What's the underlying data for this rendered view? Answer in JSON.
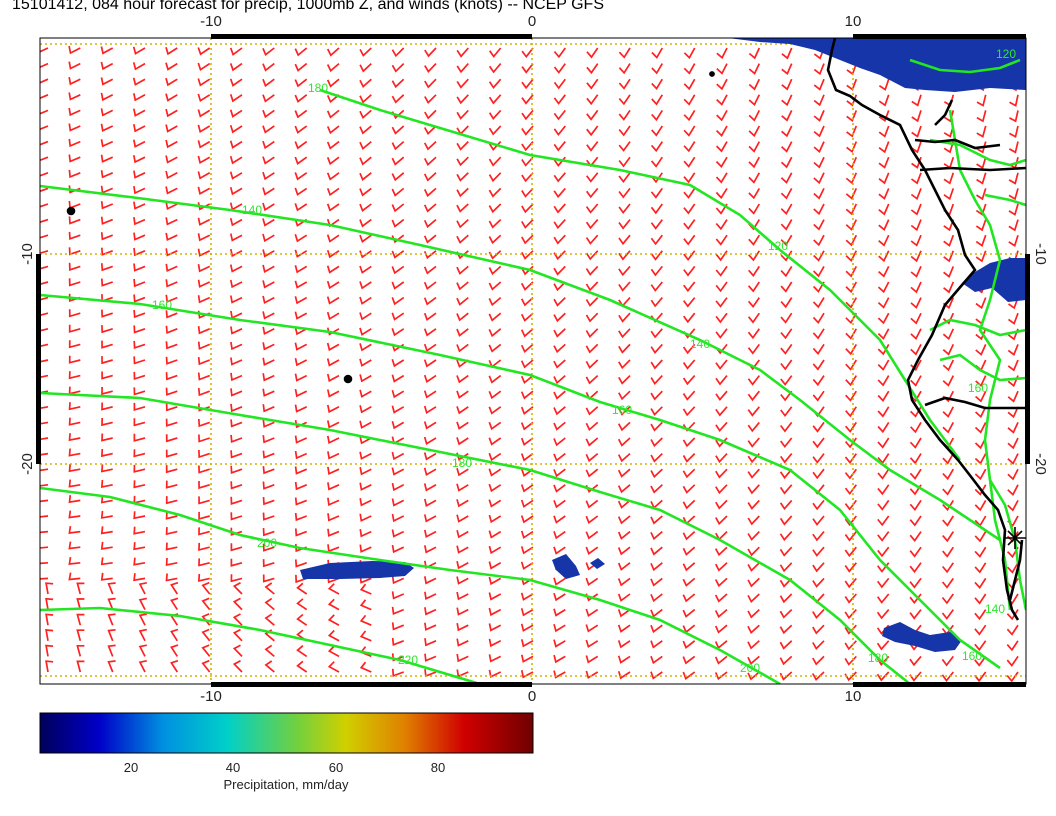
{
  "title": "15101412, 084 hour forecast for precip, 1000mb Z, and winds (knots) -- NCEP GFS",
  "map": {
    "lon_ticks_bottom": [
      "-10",
      "0",
      "10"
    ],
    "lon_ticks_top": [
      "-10",
      "0",
      "10"
    ],
    "lat_ticks_left": [
      "-10",
      "-20"
    ],
    "lat_ticks_right": [
      "-10",
      "-20"
    ],
    "colors": {
      "barb": "#ff2020",
      "contour": "#22e622",
      "coast": "#000000",
      "grid": "#d4b400",
      "precip_blue": "#1030a0"
    },
    "contour_labels": [
      "140",
      "160",
      "180",
      "200",
      "220",
      "120",
      "140",
      "160",
      "180",
      "200",
      "160",
      "140",
      "180",
      "120",
      "160"
    ]
  },
  "colorbar": {
    "label": "Precipitation, mm/day",
    "ticks": [
      "20",
      "40",
      "60",
      "80"
    ],
    "range": [
      0,
      96
    ]
  }
}
